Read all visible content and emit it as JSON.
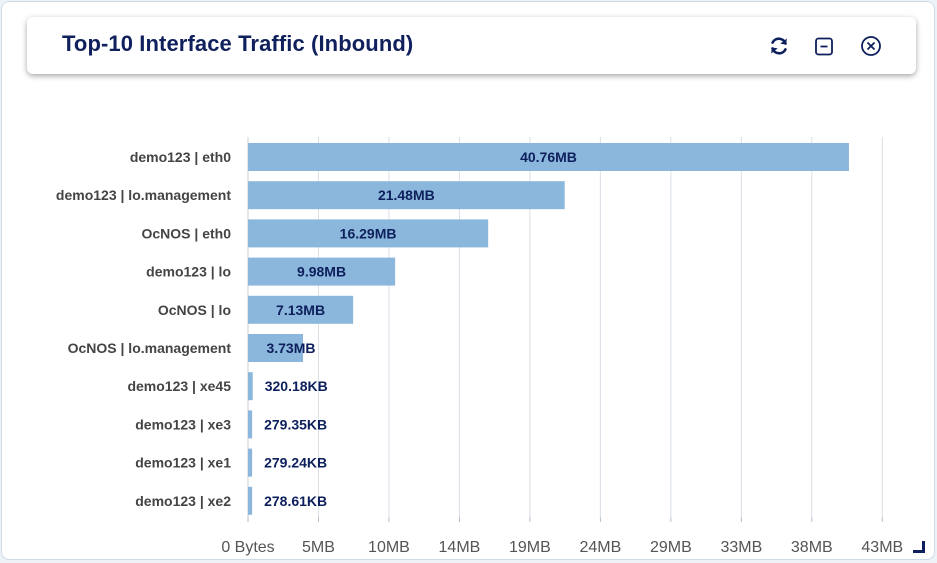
{
  "header": {
    "title": "Top-10 Interface Traffic (Inbound)",
    "icons": [
      "refresh-icon",
      "minimize-icon",
      "close-icon"
    ]
  },
  "colors": {
    "bar": "#8cb7dc",
    "title": "#10205c",
    "label": "#444444",
    "value": "#0d1f5c",
    "grid": "#d9dfe6"
  },
  "chart_data": {
    "type": "bar",
    "orientation": "horizontal",
    "title": "Top-10 Interface Traffic (Inbound)",
    "categories": [
      "demo123 | eth0",
      "demo123 | lo.management",
      "OcNOS | eth0",
      "demo123 | lo",
      "OcNOS | lo",
      "OcNOS | lo.management",
      "demo123 | xe45",
      "demo123 | xe3",
      "demo123 | xe1",
      "demo123 | xe2"
    ],
    "values": [
      40.76,
      21.48,
      16.29,
      9.98,
      7.13,
      3.73,
      0.32018,
      0.27935,
      0.27924,
      0.27861
    ],
    "value_labels": [
      "40.76MB",
      "21.48MB",
      "16.29MB",
      "9.98MB",
      "7.13MB",
      "3.73MB",
      "320.18KB",
      "279.35KB",
      "279.24KB",
      "278.61KB"
    ],
    "unit": "MB",
    "xlim": [
      0,
      43
    ],
    "xticks": [
      0,
      4.78,
      9.56,
      14.34,
      19.12,
      23.9,
      28.68,
      33.46,
      38.24,
      43.02
    ],
    "xtick_labels": [
      "0 Bytes",
      "5MB",
      "10MB",
      "14MB",
      "19MB",
      "24MB",
      "29MB",
      "33MB",
      "38MB",
      "43MB"
    ],
    "grid": true
  }
}
